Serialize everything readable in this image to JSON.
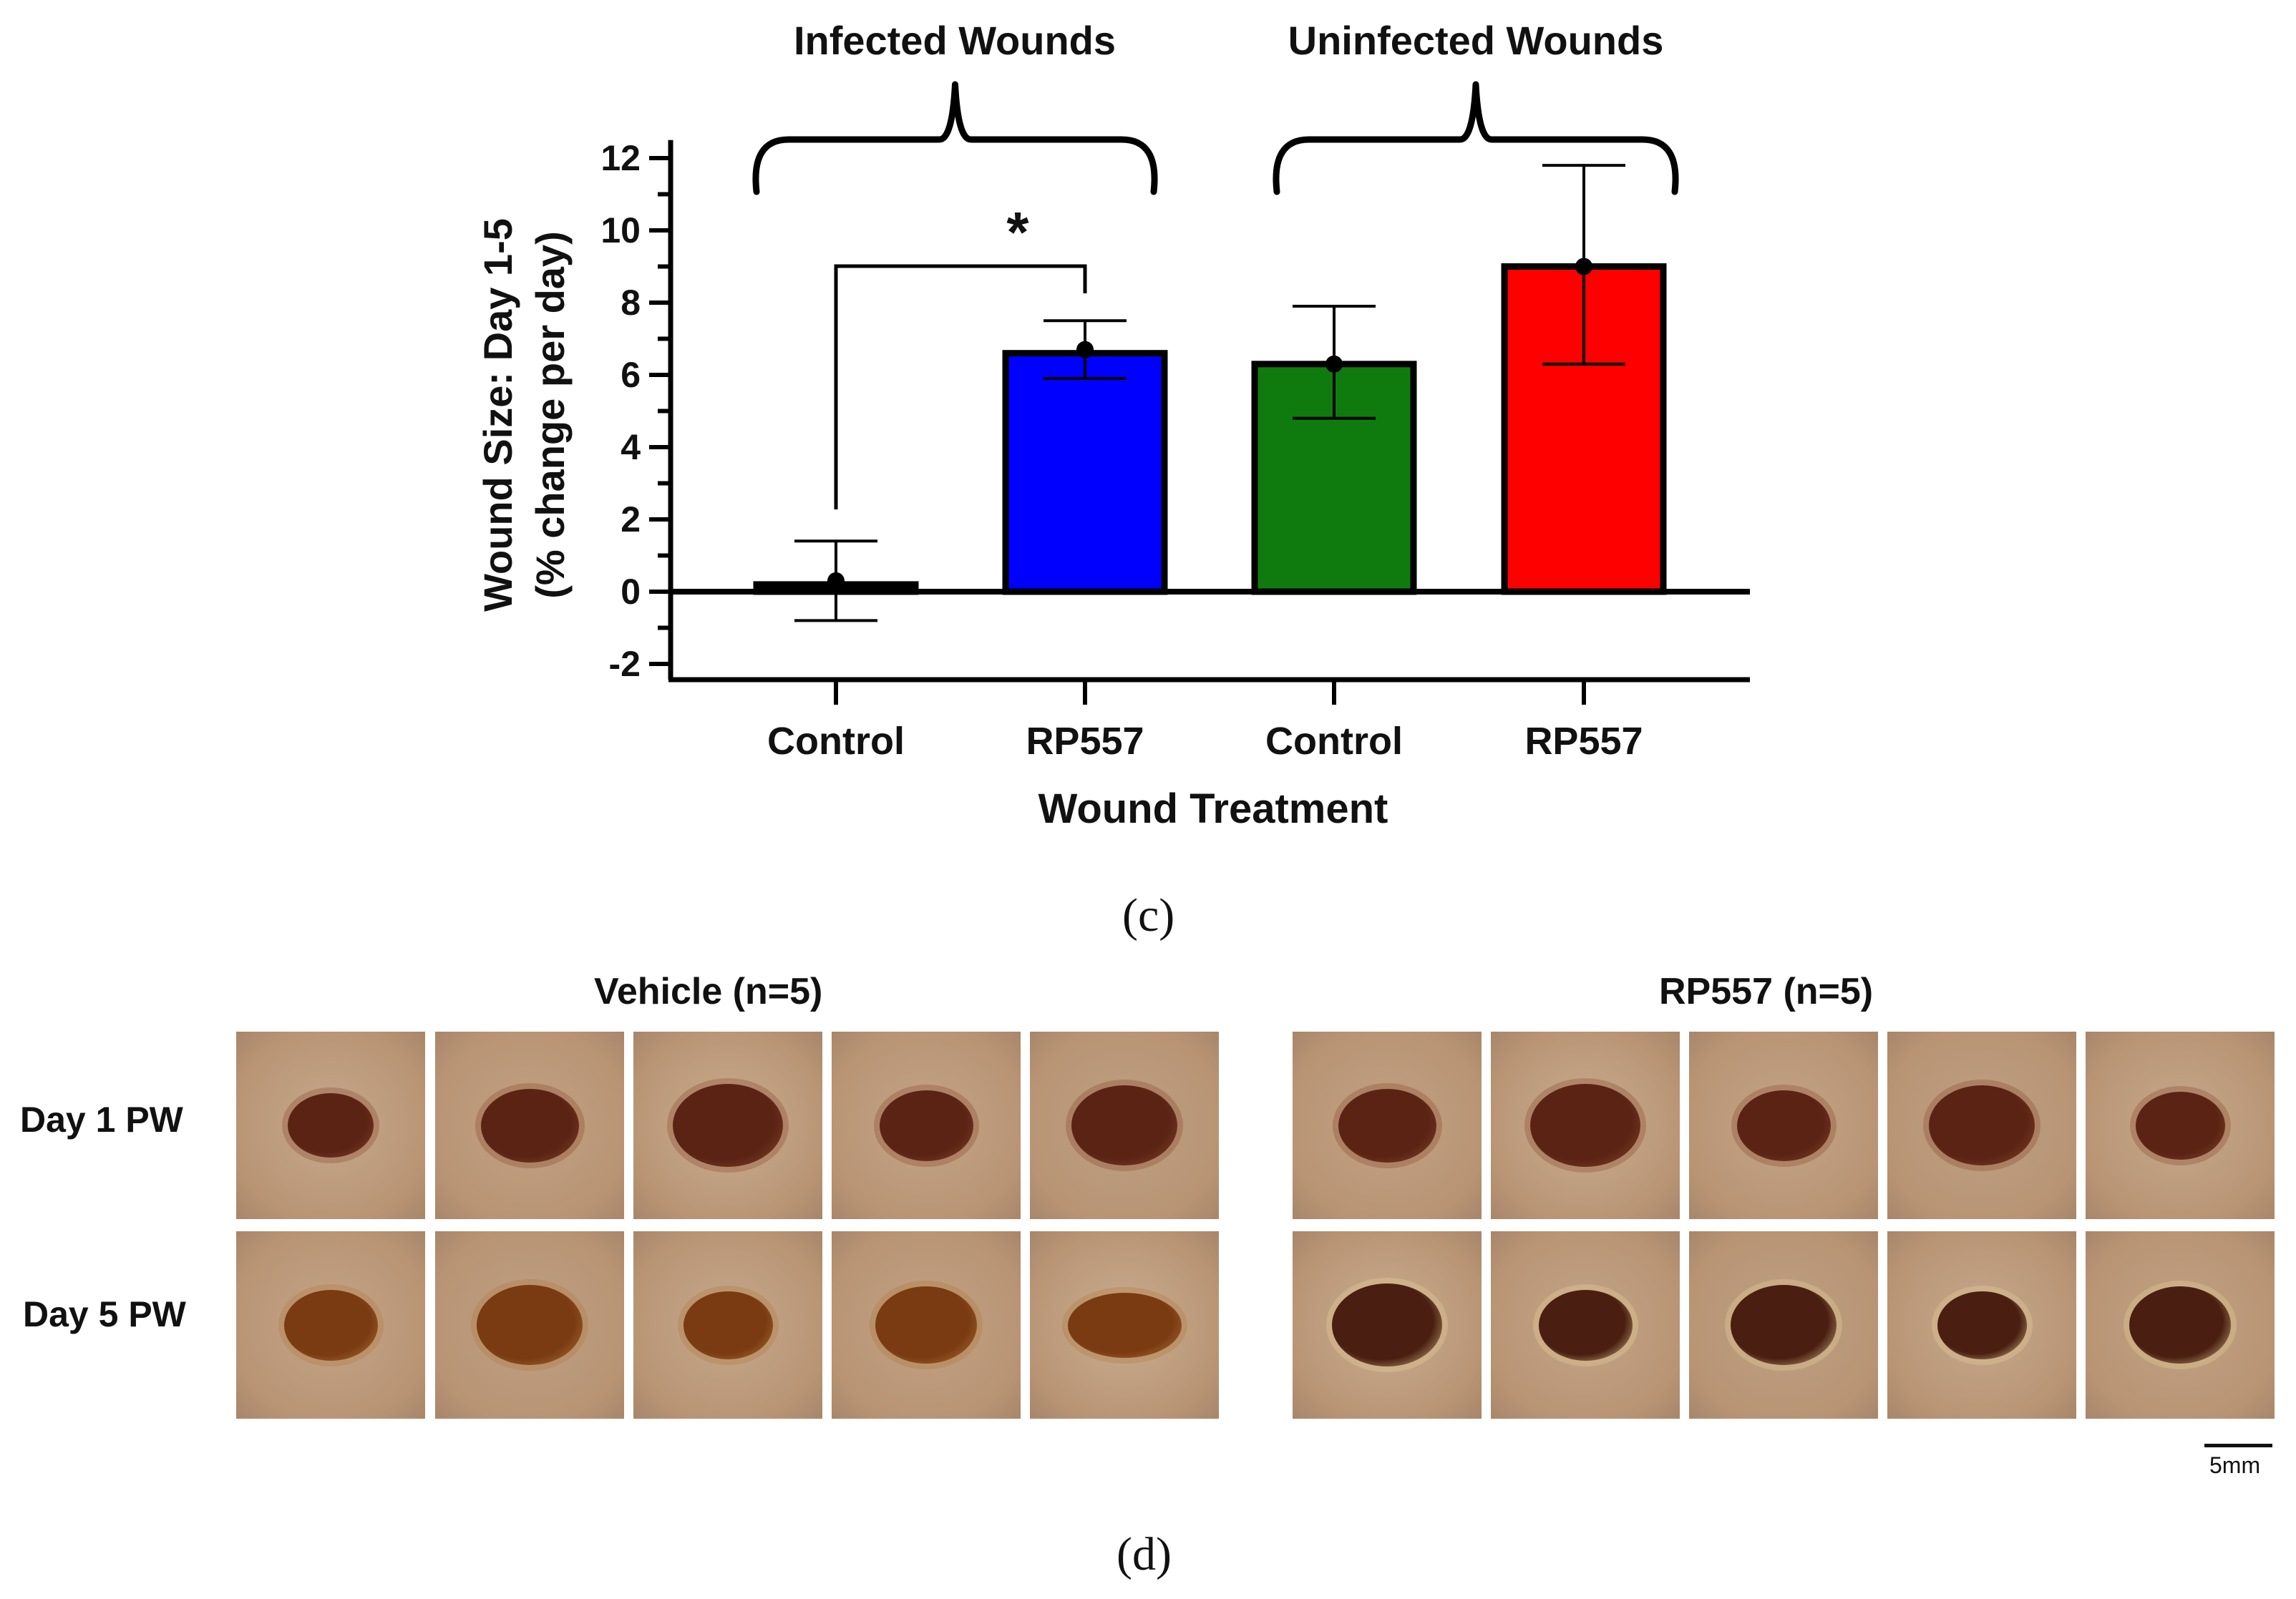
{
  "chart_data": {
    "type": "bar",
    "title": "",
    "xlabel": "Wound Treatment",
    "ylabel_line1": "Wound Size: Day 1-5",
    "ylabel_line2": "(% change per day)",
    "ylim": [
      -2.5,
      12.5
    ],
    "yticks": [
      -2,
      0,
      2,
      4,
      6,
      8,
      10,
      12
    ],
    "categories": [
      "Control",
      "RP557",
      "Control",
      "RP557"
    ],
    "values": [
      0.2,
      6.6,
      6.3,
      9.0
    ],
    "error_upper": [
      1.4,
      7.5,
      7.9,
      11.8
    ],
    "error_lower": [
      -0.8,
      5.9,
      4.8,
      6.3
    ],
    "means": [
      0.3,
      6.7,
      6.3,
      9.0
    ],
    "colors": [
      "#000000",
      "#0000ff",
      "#0f7b0f",
      "#ff0000"
    ],
    "groups": [
      {
        "label": "Infected Wounds"
      },
      {
        "label": "Uninfected Wounds"
      }
    ],
    "significance": {
      "marker": "*",
      "from": 0,
      "to": 1
    }
  },
  "panel_c_label": "(c)",
  "panel_d_label": "(d)",
  "photos": {
    "vehicle_title": "Vehicle (n=5)",
    "rp557_title": "RP557 (n=5)",
    "row1_label": "Day 1 PW",
    "row2_label": "Day 5 PW",
    "scale_label": "5mm"
  }
}
